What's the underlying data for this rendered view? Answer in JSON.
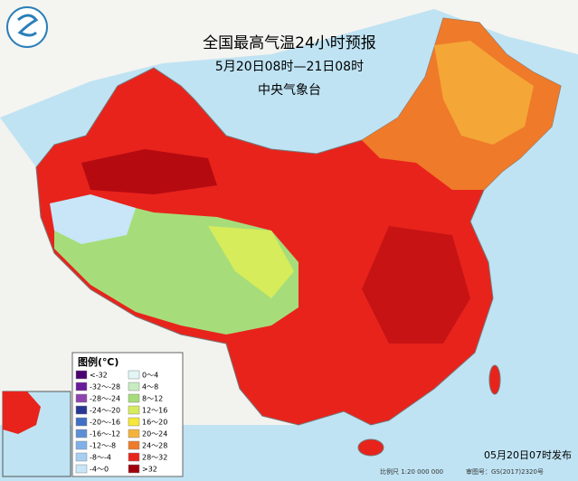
{
  "header": {
    "title": "全国最高气温24小时预报",
    "subtitle": "5月20日08时—21日08时",
    "agency": "中央气象台"
  },
  "legend": {
    "title": "图例(℃)",
    "items": [
      {
        "label": "<-32",
        "color": "#4b0070"
      },
      {
        "label": "-32～-28",
        "color": "#6a1b9a"
      },
      {
        "label": "-28～-24",
        "color": "#8e44ad"
      },
      {
        "label": "-24～-20",
        "color": "#283593"
      },
      {
        "label": "-20～-16",
        "color": "#3f6fc4"
      },
      {
        "label": "-16～-12",
        "color": "#5c8fd6"
      },
      {
        "label": "-12～-8",
        "color": "#7fb0e8"
      },
      {
        "label": "-8～-4",
        "color": "#a6cff2"
      },
      {
        "label": "-4～0",
        "color": "#c8e6f8"
      },
      {
        "label": "0～4",
        "color": "#e3f6f6"
      },
      {
        "label": "4～8",
        "color": "#c7ecc0"
      },
      {
        "label": "8～12",
        "color": "#a6dd7a"
      },
      {
        "label": "12～16",
        "color": "#d6ec5a"
      },
      {
        "label": "16～20",
        "color": "#f5e836"
      },
      {
        "label": "20～24",
        "color": "#f5b23a"
      },
      {
        "label": "24～28",
        "color": "#ef7a2a"
      },
      {
        "label": "28～32",
        "color": "#e8231c"
      },
      {
        "label": ">32",
        "color": "#a0000c"
      }
    ]
  },
  "footer": {
    "issued": "05月20日07时发布",
    "scale": "比例尺 1:20 000 000",
    "approval": "审图号：GS(2017)2320号"
  }
}
